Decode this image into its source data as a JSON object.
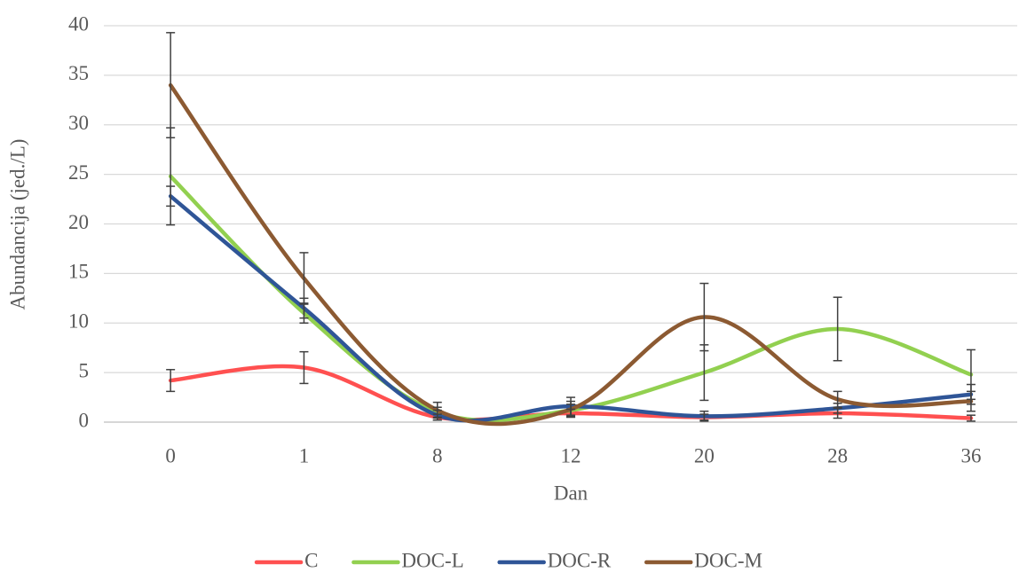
{
  "chart_data": {
    "type": "line",
    "x_label": "Dan",
    "y_label": "Abundancija (jed./L)",
    "categories": [
      "0",
      "1",
      "8",
      "12",
      "20",
      "28",
      "36"
    ],
    "series": [
      {
        "name": "C",
        "color": "#ff5050",
        "values": [
          4.2,
          5.5,
          0.5,
          0.9,
          0.5,
          0.9,
          0.4
        ],
        "errors": [
          1.1,
          1.6,
          0.3,
          0.4,
          0.3,
          0.5,
          0.3
        ]
      },
      {
        "name": "DOC-L",
        "color": "#92d050",
        "values": [
          24.8,
          11,
          1,
          1.2,
          5,
          9.4,
          4.8
        ],
        "errors": [
          4.9,
          1,
          0.5,
          0.6,
          2.8,
          3.2,
          2.5
        ]
      },
      {
        "name": "DOC-R",
        "color": "#2f5597",
        "values": [
          22.8,
          11.5,
          0.7,
          1.6,
          0.6,
          1.4,
          2.8
        ],
        "errors": [
          1,
          1,
          0.5,
          0.9,
          0.5,
          0.5,
          1
        ]
      },
      {
        "name": "DOC-M",
        "color": "#8c5a32",
        "values": [
          34,
          14.5,
          1.2,
          1.3,
          10.6,
          2.3,
          2.1
        ],
        "errors": [
          5.3,
          2.6,
          0.8,
          0.8,
          3.4,
          0.8,
          1
        ]
      }
    ],
    "ylim": [
      0,
      40
    ],
    "yticks": [
      0,
      5,
      10,
      15,
      20,
      25,
      30,
      35,
      40
    ],
    "grid": true,
    "legend": "bottom"
  }
}
